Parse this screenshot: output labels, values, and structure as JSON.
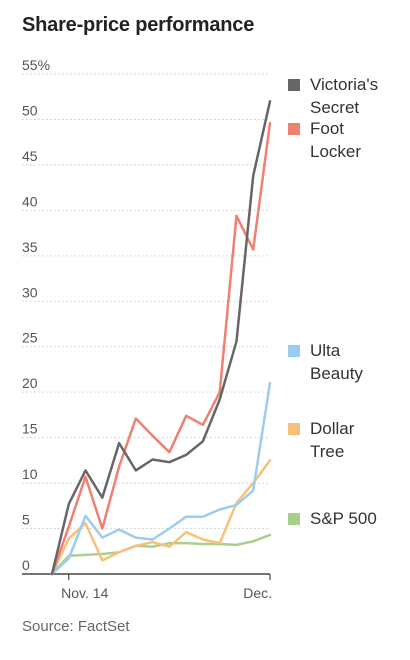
{
  "title": "Share-price performance",
  "source": "Source: FactSet",
  "chart_data": {
    "type": "line",
    "title": "Share-price performance",
    "ylim": [
      0,
      55
    ],
    "y_ticks": [
      0,
      5,
      10,
      15,
      20,
      25,
      30,
      35,
      40,
      45,
      50,
      55
    ],
    "y_tick_labels": [
      "0",
      "5",
      "10",
      "15",
      "20",
      "25",
      "30",
      "35",
      "40",
      "45",
      "50",
      "55%"
    ],
    "x_tick_labels": [
      "Nov. 14",
      "Dec."
    ],
    "grid": "horizontal",
    "legend_placement": "right",
    "series": [
      {
        "name": "Victoria's Secret",
        "legend_lines": [
          "Victoria's",
          "Secret"
        ],
        "color": "#666666",
        "values": [
          0,
          7.7,
          11.4,
          8.4,
          14.4,
          11.4,
          12.6,
          12.3,
          13.1,
          14.6,
          19.2,
          25.6,
          43.8,
          52.0
        ]
      },
      {
        "name": "Foot Locker",
        "legend_lines": [
          "Foot",
          "Locker"
        ],
        "color": "#f08070",
        "values": [
          0,
          5.2,
          10.7,
          5.0,
          11.8,
          17.1,
          15.2,
          13.4,
          17.4,
          16.4,
          20.0,
          39.4,
          35.7,
          49.6
        ]
      },
      {
        "name": "Ulta Beauty",
        "legend_lines": [
          "Ulta",
          "Beauty"
        ],
        "color": "#9ccdee",
        "values": [
          0,
          1.7,
          6.4,
          4.0,
          4.9,
          4.0,
          3.8,
          5.0,
          6.3,
          6.3,
          7.1,
          7.6,
          9.2,
          21.0
        ]
      },
      {
        "name": "Dollar Tree",
        "legend_lines": [
          "Dollar",
          "Tree"
        ],
        "color": "#f8c07a",
        "values": [
          0,
          3.9,
          5.6,
          1.5,
          2.4,
          3.1,
          3.5,
          3.0,
          4.6,
          3.8,
          3.4,
          7.8,
          10.0,
          12.5
        ]
      },
      {
        "name": "S&P 500",
        "legend_lines": [
          "S&P 500"
        ],
        "color": "#a8d08d",
        "values": [
          0,
          2.0,
          2.1,
          2.2,
          2.4,
          3.1,
          3.0,
          3.4,
          3.4,
          3.3,
          3.3,
          3.2,
          3.6,
          4.3
        ]
      }
    ]
  }
}
